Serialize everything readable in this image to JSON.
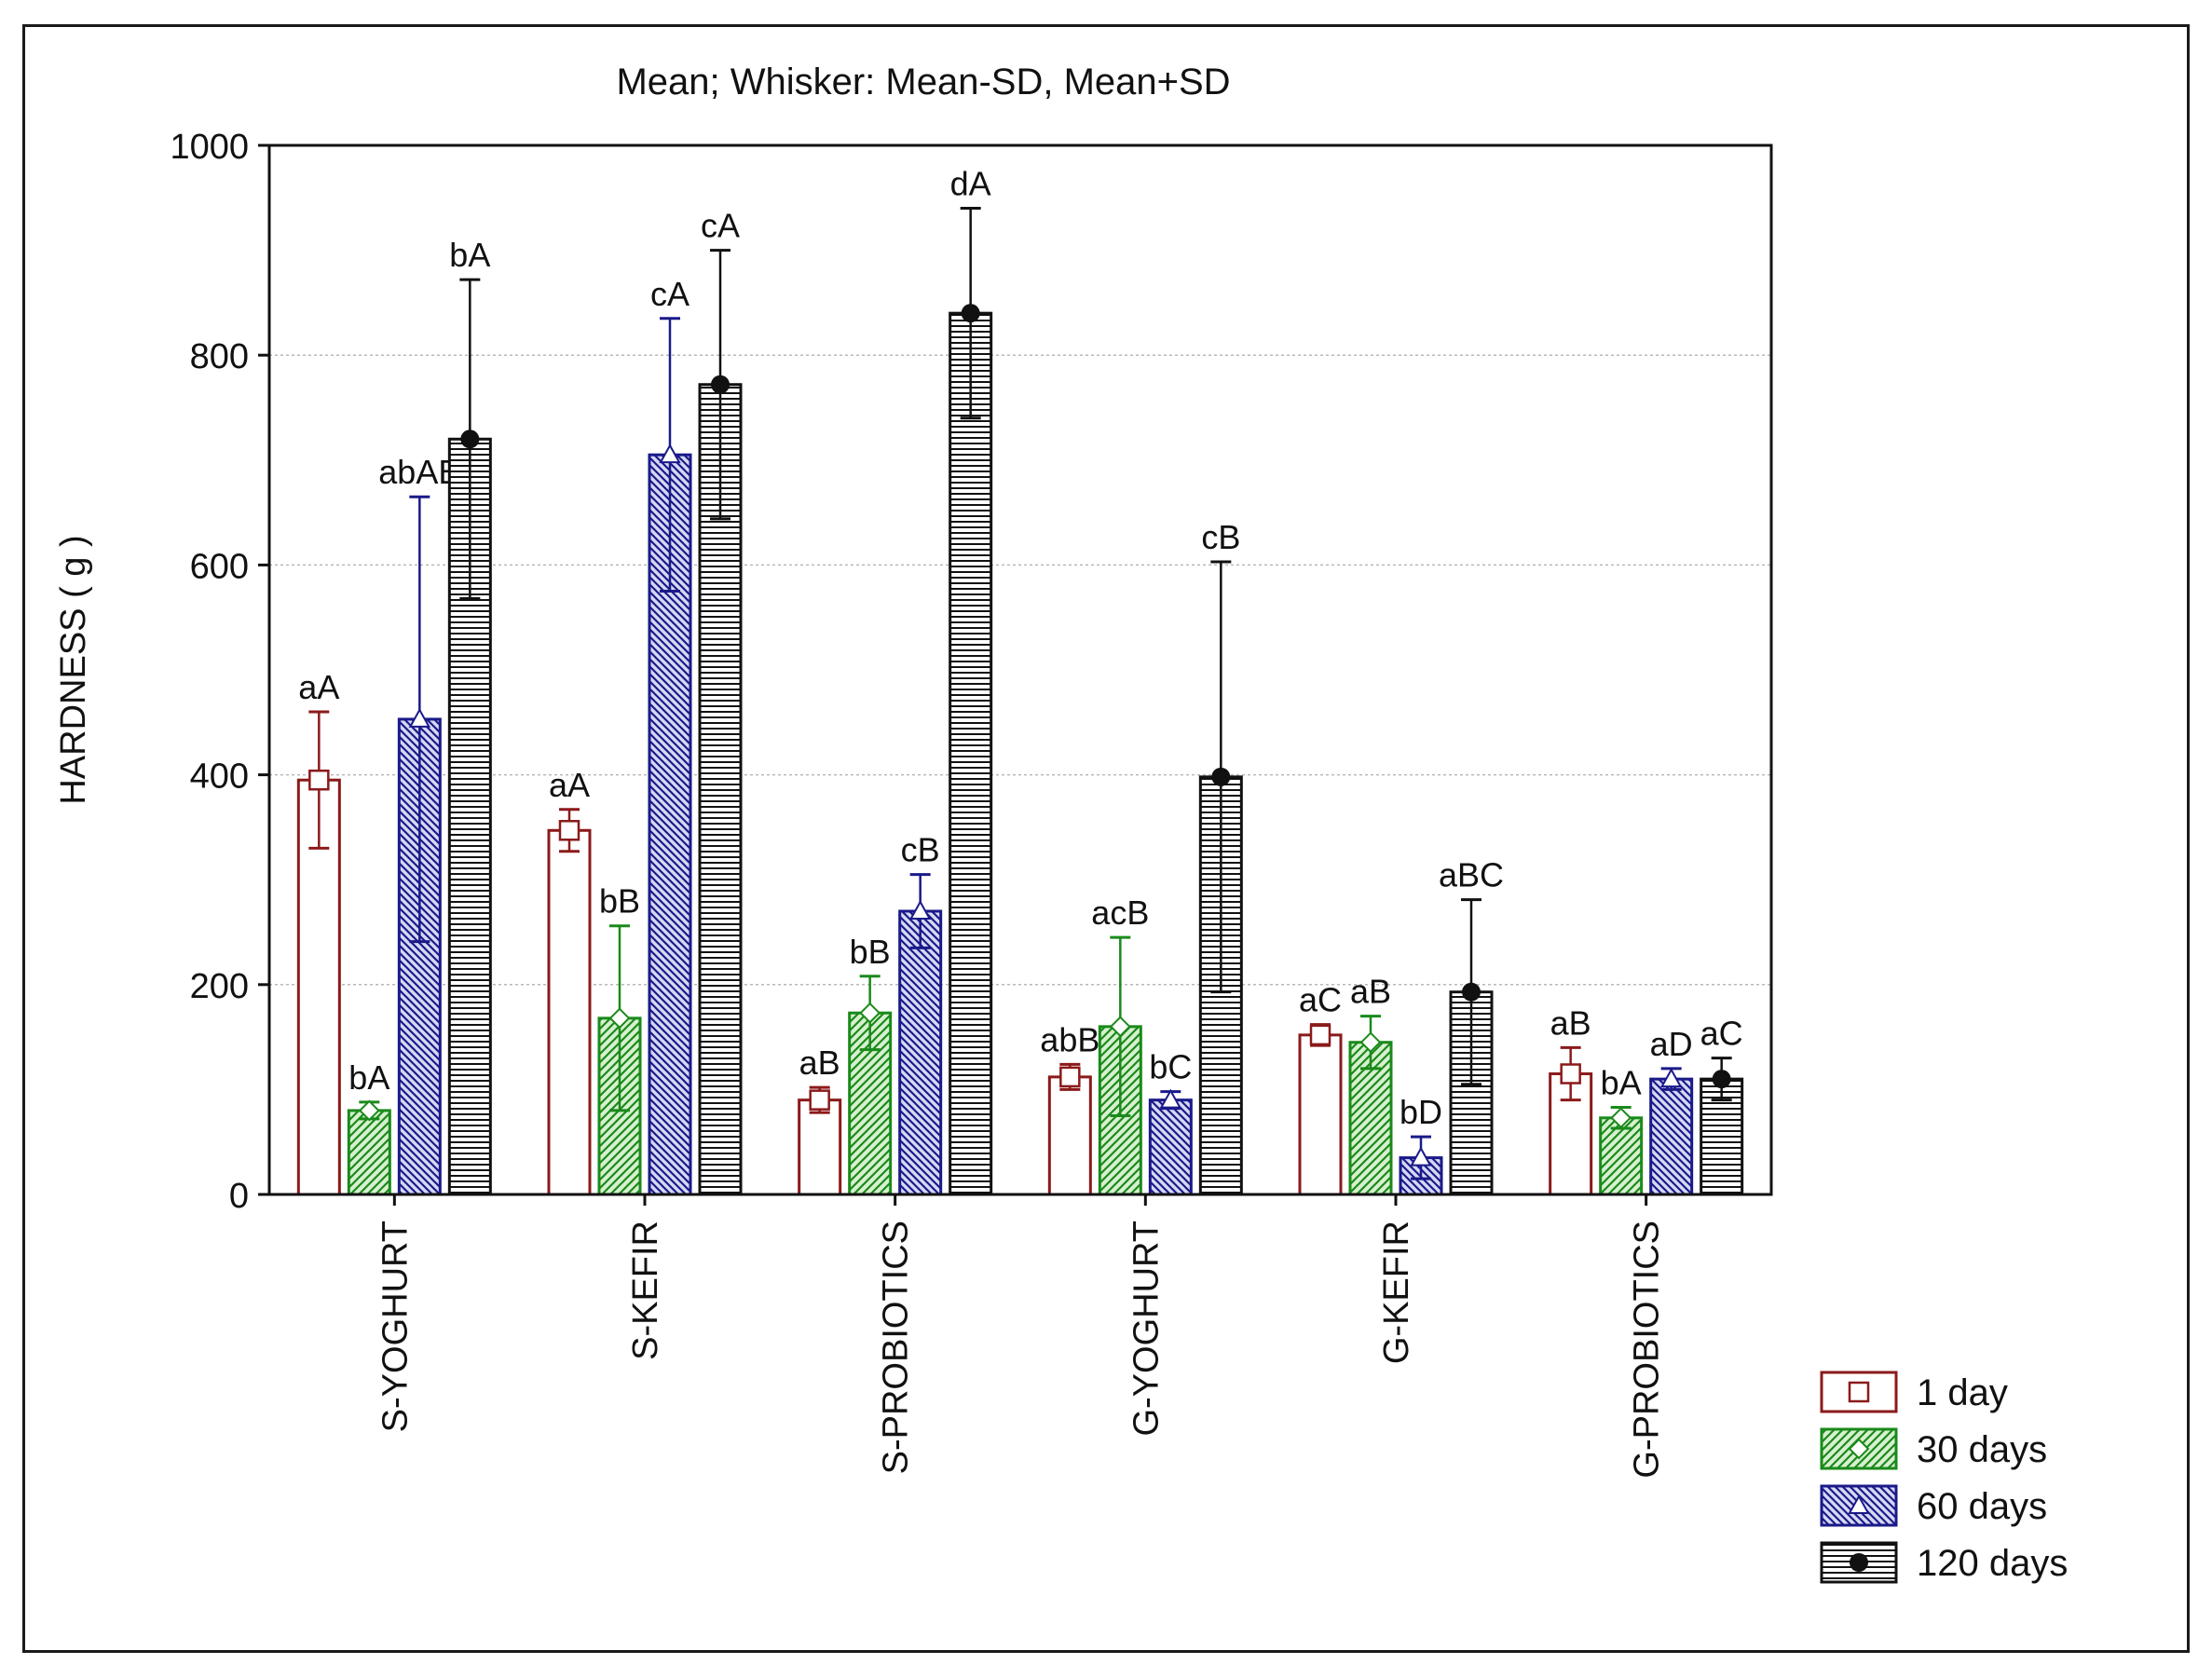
{
  "chart_data": {
    "type": "bar",
    "title": "Mean;  Whisker: Mean-SD, Mean+SD",
    "xlabel": "",
    "ylabel": "HARDNESS ( g )",
    "ylim": [
      0,
      1000
    ],
    "yticks": [
      "0",
      "200",
      "400",
      "600",
      "800",
      "1000"
    ],
    "grid": true,
    "legend_position": "bottom-right",
    "categories": [
      "S-YOGHURT",
      "S-KEFIR",
      "S-PROBIOTICS",
      "G-YOGHURT",
      "G-KEFIR",
      "G-PROBIOTICS"
    ],
    "series": [
      {
        "name": "1 day",
        "color": "#8b1a1a",
        "pattern": "none",
        "marker": "square",
        "values": [
          395,
          347,
          90,
          112,
          152,
          115
        ],
        "sd": [
          65,
          20,
          12,
          12,
          10,
          25
        ],
        "letters": [
          "aA",
          "aA",
          "aB",
          "abB",
          "aC",
          "aB"
        ]
      },
      {
        "name": "30 days",
        "color": "#1a8a1a",
        "pattern": "diagonal",
        "marker": "diamond",
        "values": [
          80,
          168,
          173,
          160,
          145,
          73
        ],
        "sd": [
          8,
          88,
          35,
          85,
          25,
          10
        ],
        "letters": [
          "bA",
          "bB",
          "bB",
          "acB",
          "aB",
          "bA"
        ]
      },
      {
        "name": "60 days",
        "color": "#1a1a8a",
        "pattern": "crosshatch",
        "marker": "triangle",
        "values": [
          453,
          705,
          270,
          90,
          35,
          110
        ],
        "sd": [
          212,
          130,
          35,
          8,
          20,
          10
        ],
        "letters": [
          "abAB",
          "cA",
          "cB",
          "bC",
          "bD",
          "aD"
        ]
      },
      {
        "name": "120 days",
        "color": "#111111",
        "pattern": "horizontal",
        "marker": "circle",
        "values": [
          720,
          772,
          840,
          398,
          193,
          110
        ],
        "sd": [
          152,
          128,
          100,
          205,
          88,
          20
        ],
        "letters": [
          "bA",
          "cA",
          "dA",
          "cB",
          "aBC",
          "aC"
        ]
      }
    ]
  }
}
